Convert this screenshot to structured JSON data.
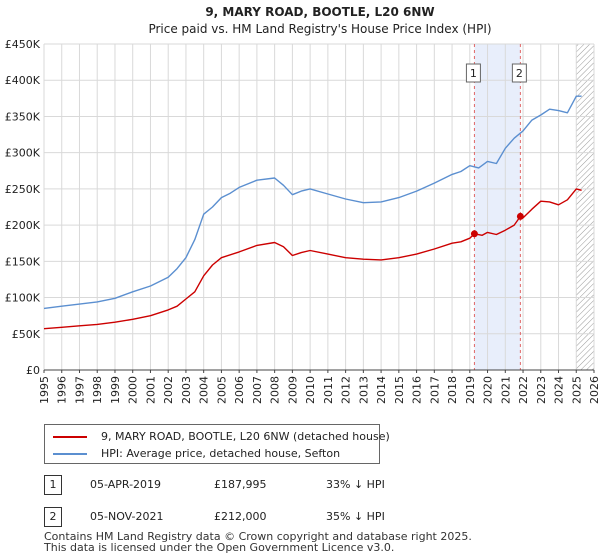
{
  "chart_data": {
    "type": "line",
    "title": "9, MARY ROAD, BOOTLE, L20 6NW",
    "subtitle": "Price paid vs. HM Land Registry's House Price Index (HPI)",
    "xlim": [
      1995,
      2026
    ],
    "ylim": [
      0,
      450000
    ],
    "x_ticks": [
      1995,
      1996,
      1997,
      1998,
      1999,
      2000,
      2001,
      2002,
      2003,
      2004,
      2005,
      2006,
      2007,
      2008,
      2009,
      2010,
      2011,
      2012,
      2013,
      2014,
      2015,
      2016,
      2017,
      2018,
      2019,
      2020,
      2021,
      2022,
      2023,
      2024,
      2025,
      2026
    ],
    "y_ticks": [
      {
        "value": 0,
        "label": "£0"
      },
      {
        "value": 50000,
        "label": "£50K"
      },
      {
        "value": 100000,
        "label": "£100K"
      },
      {
        "value": 150000,
        "label": "£150K"
      },
      {
        "value": 200000,
        "label": "£200K"
      },
      {
        "value": 250000,
        "label": "£250K"
      },
      {
        "value": 300000,
        "label": "£300K"
      },
      {
        "value": 350000,
        "label": "£350K"
      },
      {
        "value": 400000,
        "label": "£400K"
      },
      {
        "value": 450000,
        "label": "£450K"
      }
    ],
    "grid": true,
    "shaded_span": {
      "from": 2019.26,
      "to": 2021.85
    },
    "hatched_after": 2025.0,
    "series": [
      {
        "name": "9, MARY ROAD, BOOTLE, L20 6NW (detached house)",
        "color": "#cc0000",
        "x": [
          1995,
          1996,
          1997,
          1998,
          1999,
          2000,
          2001,
          2002,
          2002.5,
          2003,
          2003.5,
          2004,
          2004.5,
          2005,
          2006,
          2007,
          2008,
          2008.5,
          2009,
          2009.5,
          2010,
          2011,
          2012,
          2013,
          2014,
          2015,
          2016,
          2017,
          2018,
          2018.5,
          2019,
          2019.26,
          2019.7,
          2020,
          2020.5,
          2021,
          2021.5,
          2021.85,
          2022,
          2022.5,
          2023,
          2023.5,
          2024,
          2024.5,
          2025,
          2025.3
        ],
        "y": [
          57000,
          59000,
          61000,
          63000,
          66000,
          70000,
          75000,
          83000,
          88000,
          98000,
          108000,
          130000,
          145000,
          155000,
          163000,
          172000,
          176000,
          170000,
          158000,
          162000,
          165000,
          160000,
          155000,
          153000,
          152000,
          155000,
          160000,
          167000,
          175000,
          177000,
          182000,
          187995,
          186000,
          190000,
          187000,
          193000,
          200000,
          212000,
          210000,
          222000,
          233000,
          232000,
          228000,
          235000,
          250000,
          248000
        ]
      },
      {
        "name": "HPI: Average price, detached house, Sefton",
        "color": "#5b8fd0",
        "x": [
          1995,
          1996,
          1997,
          1998,
          1999,
          2000,
          2001,
          2002,
          2002.5,
          2003,
          2003.5,
          2004,
          2004.5,
          2005,
          2005.5,
          2006,
          2007,
          2008,
          2008.5,
          2009,
          2009.5,
          2010,
          2011,
          2012,
          2013,
          2014,
          2015,
          2016,
          2017,
          2018,
          2018.5,
          2019,
          2019.5,
          2020,
          2020.5,
          2021,
          2021.5,
          2022,
          2022.5,
          2023,
          2023.5,
          2024,
          2024.5,
          2025,
          2025.3
        ],
        "y": [
          85000,
          88000,
          91000,
          94000,
          99000,
          108000,
          116000,
          128000,
          140000,
          155000,
          180000,
          215000,
          225000,
          238000,
          244000,
          252000,
          262000,
          265000,
          255000,
          242000,
          247000,
          250000,
          243000,
          236000,
          231000,
          232000,
          238000,
          247000,
          258000,
          270000,
          274000,
          282000,
          279000,
          288000,
          285000,
          306000,
          320000,
          330000,
          345000,
          352000,
          360000,
          358000,
          355000,
          378000,
          378000
        ]
      }
    ],
    "markers": [
      {
        "label": "1",
        "x": 2019.26,
        "y": 187995
      },
      {
        "label": "2",
        "x": 2021.85,
        "y": 212000
      }
    ]
  },
  "legend": {
    "items": [
      {
        "label": "9, MARY ROAD, BOOTLE, L20 6NW (detached house)",
        "color": "#cc0000"
      },
      {
        "label": "HPI: Average price, detached house, Sefton",
        "color": "#5b8fd0"
      }
    ]
  },
  "transactions": [
    {
      "num": "1",
      "date": "05-APR-2019",
      "price": "£187,995",
      "hpi": "33% ↓ HPI"
    },
    {
      "num": "2",
      "date": "05-NOV-2021",
      "price": "£212,000",
      "hpi": "35% ↓ HPI"
    }
  ],
  "footer": {
    "line1": "Contains HM Land Registry data © Crown copyright and database right 2025.",
    "line2": "This data is licensed under the Open Government Licence v3.0."
  }
}
